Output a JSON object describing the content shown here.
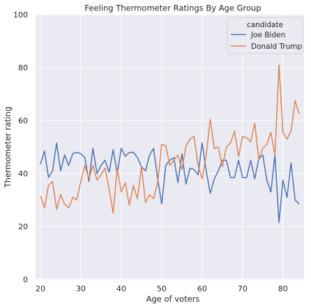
{
  "chart_data": {
    "type": "line",
    "title": "Feeling Thermometer Ratings By Age Group",
    "xlabel": "Age of voters",
    "ylabel": "Thermometer rating",
    "xlim": [
      18.8,
      85.2
    ],
    "ylim": [
      0,
      100
    ],
    "xticks": [
      20,
      30,
      40,
      50,
      60,
      70,
      80
    ],
    "yticks": [
      0,
      20,
      40,
      60,
      80,
      100
    ],
    "grid": true,
    "background": "#eaeaf2",
    "legend": {
      "title": "candidate",
      "placement": "top-right"
    },
    "x": [
      20,
      21,
      22,
      23,
      24,
      25,
      26,
      27,
      28,
      29,
      30,
      31,
      32,
      33,
      34,
      35,
      36,
      37,
      38,
      39,
      40,
      41,
      42,
      43,
      44,
      45,
      46,
      47,
      48,
      49,
      50,
      51,
      52,
      53,
      54,
      55,
      56,
      57,
      58,
      59,
      60,
      61,
      62,
      63,
      64,
      65,
      66,
      67,
      68,
      69,
      70,
      71,
      72,
      73,
      74,
      75,
      76,
      77,
      78,
      79,
      80,
      81,
      82,
      83,
      84
    ],
    "series": [
      {
        "name": "Joe Biden",
        "color": "#4c72b0",
        "values": [
          43.5,
          48.5,
          38.5,
          41,
          51.5,
          41,
          47,
          43,
          47.5,
          48,
          47.5,
          46,
          37,
          49.5,
          40,
          43,
          45,
          40.5,
          49,
          40,
          49.5,
          46.5,
          48,
          48,
          46,
          42.5,
          41,
          47,
          49.5,
          38,
          28.5,
          43,
          45,
          46,
          36.5,
          47.5,
          36,
          42,
          41.5,
          39.5,
          51.5,
          41,
          32.5,
          38,
          41,
          45,
          45,
          38.5,
          38.5,
          45,
          38.5,
          38.5,
          45,
          38,
          45.5,
          47,
          37.5,
          33,
          47,
          21.5,
          37.5,
          31,
          44,
          30,
          28.5
        ]
      },
      {
        "name": "Donald Trump",
        "color": "#dd8452",
        "values": [
          31.5,
          27,
          35.5,
          37,
          26.5,
          32,
          28.5,
          27,
          31,
          30,
          37,
          43,
          38,
          43,
          37.5,
          39.5,
          42,
          34,
          25,
          42,
          33,
          36.5,
          28,
          35.5,
          30.5,
          42.5,
          29,
          32,
          30.5,
          36.5,
          51,
          50.5,
          43,
          45,
          47,
          41.5,
          50.5,
          53,
          54,
          43,
          38,
          47,
          60.5,
          49.5,
          50,
          42.5,
          50,
          51.5,
          56,
          46.5,
          54,
          53.5,
          52,
          59,
          45.5,
          49.5,
          51,
          55.5,
          47,
          81,
          55.5,
          53,
          56,
          67.5,
          62.5
        ]
      }
    ]
  }
}
